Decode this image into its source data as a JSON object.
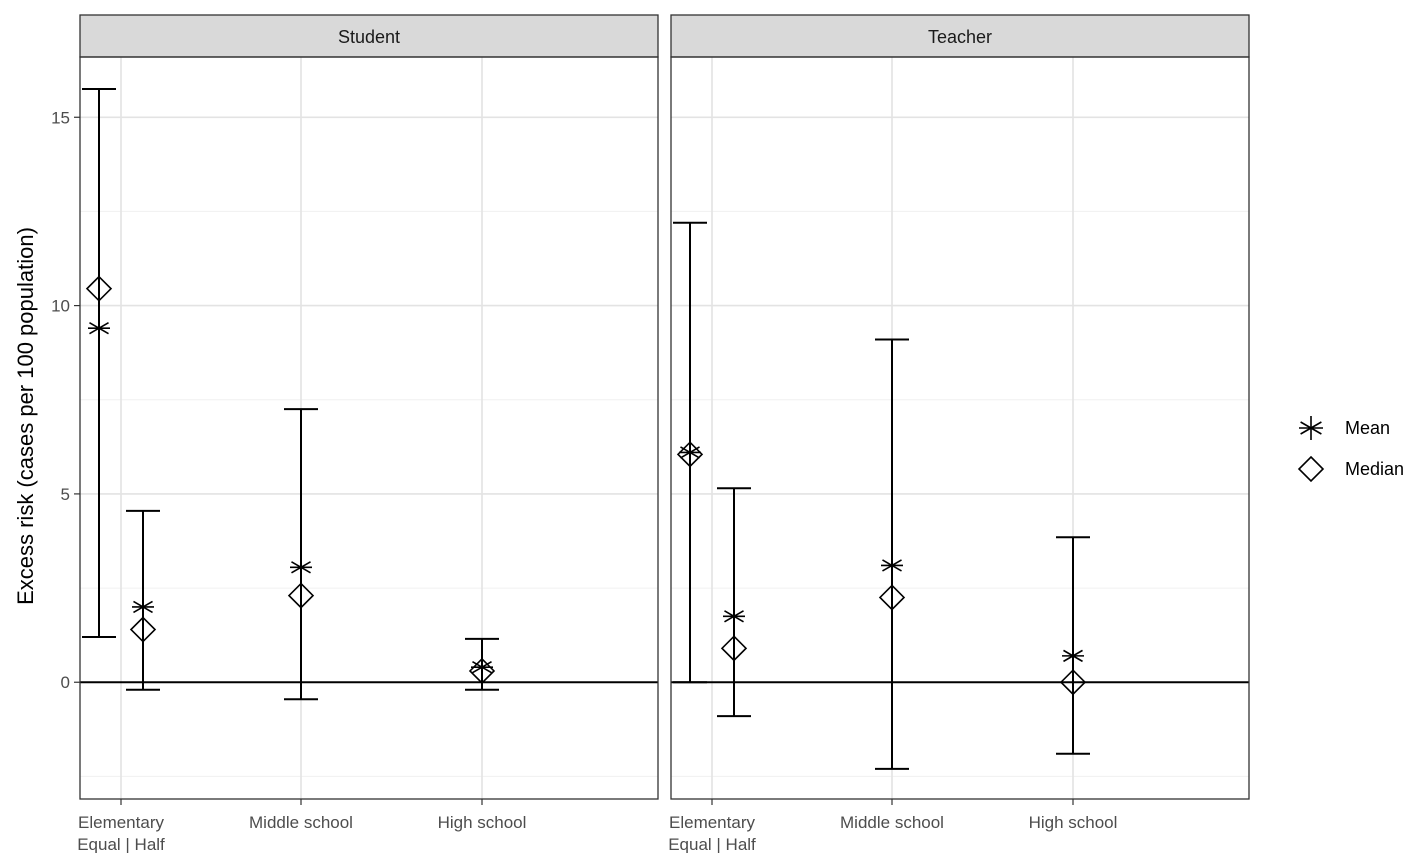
{
  "chart_data": {
    "type": "errorbar",
    "ylabel": "Excess risk (cases per 100 population)",
    "ylim": [
      -3.1,
      16.6
    ],
    "yticks": [
      0,
      5,
      10,
      15
    ],
    "yminor": [
      -2.5,
      2.5,
      7.5,
      12.5
    ],
    "categories": [
      "Elementary\nEqual | Half",
      "Middle school",
      "High school"
    ],
    "grid": true,
    "reference_line_y": 0,
    "legend": {
      "position": "right",
      "entries": [
        {
          "label": "Mean",
          "shape": "asterisk"
        },
        {
          "label": "Median",
          "shape": "diamond"
        }
      ]
    },
    "panels": [
      {
        "title": "Student",
        "items": [
          {
            "category": "Elementary\nEqual | Half",
            "group": "Equal",
            "ymin": 1.2,
            "ymax": 15.75,
            "mean": 9.4,
            "median": 10.45
          },
          {
            "category": "Elementary\nEqual | Half",
            "group": "Half",
            "ymin": -0.2,
            "ymax": 4.55,
            "mean": 2.0,
            "median": 1.4
          },
          {
            "category": "Middle school",
            "group": "",
            "ymin": -0.45,
            "ymax": 7.25,
            "mean": 3.05,
            "median": 2.3
          },
          {
            "category": "High school",
            "group": "",
            "ymin": -0.2,
            "ymax": 1.15,
            "mean": 0.4,
            "median": 0.3
          }
        ]
      },
      {
        "title": "Teacher",
        "items": [
          {
            "category": "Elementary\nEqual | Half",
            "group": "Equal",
            "ymin": 0.0,
            "ymax": 12.2,
            "mean": 6.1,
            "median": 6.05
          },
          {
            "category": "Elementary\nEqual | Half",
            "group": "Half",
            "ymin": -0.9,
            "ymax": 5.15,
            "mean": 1.75,
            "median": 0.9
          },
          {
            "category": "Middle school",
            "group": "",
            "ymin": -2.3,
            "ymax": 9.1,
            "mean": 3.1,
            "median": 2.25
          },
          {
            "category": "High school",
            "group": "",
            "ymin": -1.9,
            "ymax": 3.85,
            "mean": 0.7,
            "median": 0.0
          }
        ]
      }
    ]
  }
}
